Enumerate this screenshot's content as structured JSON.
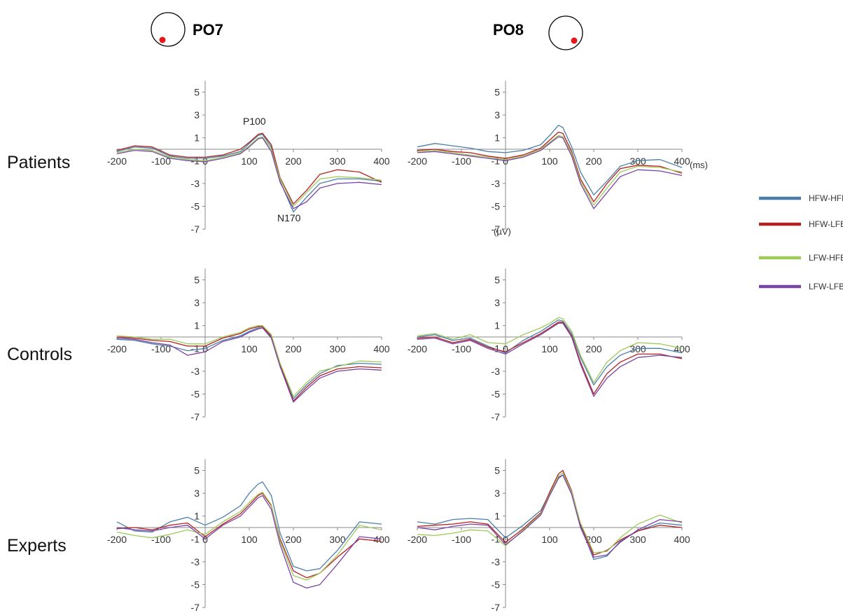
{
  "electrodes": [
    {
      "label": "PO7",
      "dot_color": "#e3191c"
    },
    {
      "label": "PO8",
      "dot_color": "#e3191c"
    }
  ],
  "rows": [
    "Patients",
    "Controls",
    "Experts"
  ],
  "legend": [
    {
      "name": "HFW-HFB",
      "color": "#4a7ea8"
    },
    {
      "name": "HFW-LFB",
      "color": "#b22222"
    },
    {
      "name": "LFW-HFB",
      "color": "#9fca5a"
    },
    {
      "name": "LFW-LFB",
      "color": "#7b43a6"
    }
  ],
  "units": {
    "x": "(ms)",
    "y": "(µV)"
  },
  "annotations": {
    "p100": "P100",
    "n170": "N170"
  },
  "chart_data": [
    {
      "type": "line",
      "row": "Patients",
      "electrode": "PO7",
      "xlim": [
        -200,
        400
      ],
      "ylim": [
        -7,
        6
      ],
      "xticks": [
        -200,
        -100,
        0,
        100,
        200,
        300,
        400
      ],
      "yticks": [
        5,
        3,
        1,
        -1,
        -3,
        -5,
        -7
      ],
      "x": [
        -200,
        -160,
        -120,
        -80,
        -40,
        0,
        40,
        80,
        100,
        120,
        130,
        150,
        170,
        200,
        230,
        260,
        300,
        350,
        400
      ],
      "series": [
        {
          "name": "HFW-HFB",
          "values": [
            -0.2,
            0.2,
            0.1,
            -0.6,
            -0.8,
            -0.8,
            -0.6,
            -0.2,
            0.5,
            1.2,
            1.3,
            0.2,
            -2.8,
            -5.5,
            -4.2,
            -3.0,
            -2.6,
            -2.6,
            -2.8
          ]
        },
        {
          "name": "HFW-LFB",
          "values": [
            -0.1,
            0.3,
            0.2,
            -0.5,
            -0.7,
            -0.7,
            -0.5,
            0.0,
            0.6,
            1.3,
            1.4,
            0.4,
            -2.5,
            -4.8,
            -3.6,
            -2.2,
            -1.8,
            -2.0,
            -2.9
          ]
        },
        {
          "name": "LFW-HFB",
          "values": [
            -0.3,
            0.0,
            -0.1,
            -0.7,
            -0.9,
            -1.0,
            -0.7,
            -0.3,
            0.3,
            1.0,
            1.1,
            0.0,
            -2.6,
            -5.0,
            -3.8,
            -2.6,
            -2.4,
            -2.5,
            -2.7
          ]
        },
        {
          "name": "LFW-LFB",
          "values": [
            -0.4,
            -0.1,
            -0.2,
            -0.8,
            -1.0,
            -1.1,
            -0.8,
            -0.4,
            0.2,
            0.9,
            1.0,
            -0.2,
            -2.9,
            -5.2,
            -4.6,
            -3.4,
            -3.0,
            -2.9,
            -3.1
          ]
        }
      ]
    },
    {
      "type": "line",
      "row": "Patients",
      "electrode": "PO8",
      "xlim": [
        -200,
        400
      ],
      "ylim": [
        -7,
        6
      ],
      "xticks": [
        -200,
        -100,
        0,
        100,
        200,
        300,
        400
      ],
      "yticks": [
        5,
        3,
        1,
        -1,
        -3,
        -5,
        -7
      ],
      "x": [
        -200,
        -160,
        -120,
        -80,
        -40,
        0,
        40,
        80,
        100,
        120,
        130,
        150,
        170,
        200,
        230,
        260,
        300,
        350,
        400
      ],
      "series": [
        {
          "name": "HFW-HFB",
          "values": [
            0.2,
            0.5,
            0.3,
            0.1,
            -0.2,
            -0.3,
            -0.1,
            0.4,
            1.2,
            2.1,
            1.9,
            0.2,
            -2.0,
            -4.0,
            -2.8,
            -1.5,
            -1.0,
            -0.9,
            -1.6
          ]
        },
        {
          "name": "HFW-LFB",
          "values": [
            -0.1,
            0.0,
            -0.2,
            -0.3,
            -0.6,
            -0.8,
            -0.5,
            0.1,
            0.8,
            1.5,
            1.4,
            -0.2,
            -2.6,
            -4.6,
            -3.0,
            -1.7,
            -1.4,
            -1.5,
            -2.1
          ]
        },
        {
          "name": "LFW-HFB",
          "values": [
            -0.2,
            -0.1,
            -0.3,
            -0.5,
            -0.7,
            -0.9,
            -0.6,
            0.0,
            0.6,
            1.2,
            1.1,
            -0.4,
            -2.8,
            -4.9,
            -3.4,
            -2.0,
            -1.5,
            -1.6,
            -2.0
          ]
        },
        {
          "name": "LFW-LFB",
          "values": [
            -0.3,
            -0.2,
            -0.4,
            -0.6,
            -0.8,
            -1.0,
            -0.7,
            -0.1,
            0.5,
            1.1,
            1.0,
            -0.6,
            -3.0,
            -5.2,
            -3.8,
            -2.4,
            -1.8,
            -1.9,
            -2.3
          ]
        }
      ]
    },
    {
      "type": "line",
      "row": "Controls",
      "electrode": "PO7",
      "xlim": [
        -200,
        400
      ],
      "ylim": [
        -7,
        6
      ],
      "xticks": [
        -200,
        -100,
        0,
        100,
        200,
        300,
        400
      ],
      "yticks": [
        5,
        3,
        1,
        -1,
        -3,
        -5,
        -7
      ],
      "x": [
        -200,
        -160,
        -120,
        -80,
        -40,
        0,
        40,
        80,
        100,
        120,
        130,
        150,
        170,
        200,
        230,
        260,
        300,
        350,
        400
      ],
      "series": [
        {
          "name": "HFW-HFB",
          "values": [
            -0.2,
            -0.3,
            -0.6,
            -0.8,
            -1.2,
            -1.0,
            -0.3,
            0.1,
            0.5,
            0.8,
            0.8,
            0.0,
            -2.5,
            -5.4,
            -4.2,
            -3.2,
            -2.5,
            -2.3,
            -2.4
          ]
        },
        {
          "name": "HFW-LFB",
          "values": [
            0.0,
            -0.1,
            -0.3,
            -0.4,
            -0.8,
            -0.8,
            -0.1,
            0.3,
            0.7,
            0.9,
            0.9,
            0.1,
            -2.4,
            -5.6,
            -4.4,
            -3.4,
            -2.8,
            -2.6,
            -2.7
          ]
        },
        {
          "name": "LFW-HFB",
          "values": [
            0.1,
            0.0,
            -0.2,
            -0.2,
            -0.6,
            -0.6,
            0.0,
            0.4,
            0.8,
            1.0,
            1.0,
            0.2,
            -2.3,
            -5.2,
            -4.0,
            -3.0,
            -2.6,
            -2.1,
            -2.2
          ]
        },
        {
          "name": "LFW-LFB",
          "values": [
            -0.1,
            -0.2,
            -0.5,
            -0.7,
            -1.6,
            -1.3,
            -0.4,
            0.0,
            0.4,
            0.7,
            0.8,
            -0.1,
            -2.6,
            -5.7,
            -4.6,
            -3.6,
            -3.0,
            -2.8,
            -2.9
          ]
        }
      ]
    },
    {
      "type": "line",
      "row": "Controls",
      "electrode": "PO8",
      "xlim": [
        -200,
        400
      ],
      "ylim": [
        -7,
        6
      ],
      "xticks": [
        -200,
        -100,
        0,
        100,
        200,
        300,
        400
      ],
      "yticks": [
        5,
        3,
        1,
        -1,
        -3,
        -5,
        -7
      ],
      "x": [
        -200,
        -160,
        -120,
        -80,
        -40,
        0,
        40,
        80,
        100,
        120,
        130,
        150,
        170,
        200,
        230,
        260,
        300,
        350,
        400
      ],
      "series": [
        {
          "name": "HFW-HFB",
          "values": [
            0.0,
            0.2,
            -0.3,
            -0.1,
            -0.8,
            -1.4,
            -0.3,
            0.5,
            1.0,
            1.5,
            1.4,
            0.3,
            -1.8,
            -4.2,
            -2.6,
            -1.6,
            -1.0,
            -1.0,
            -1.4
          ]
        },
        {
          "name": "HFW-LFB",
          "values": [
            -0.1,
            0.0,
            -0.5,
            -0.2,
            -0.9,
            -1.3,
            -0.5,
            0.3,
            0.8,
            1.3,
            1.3,
            0.1,
            -2.2,
            -5.0,
            -3.2,
            -2.2,
            -1.5,
            -1.5,
            -1.9
          ]
        },
        {
          "name": "LFW-HFB",
          "values": [
            0.1,
            0.3,
            -0.2,
            0.2,
            -0.5,
            -0.6,
            0.2,
            0.8,
            1.2,
            1.7,
            1.6,
            0.5,
            -1.6,
            -4.0,
            -2.2,
            -1.2,
            -0.5,
            -0.6,
            -1.0
          ]
        },
        {
          "name": "LFW-LFB",
          "values": [
            -0.2,
            -0.1,
            -0.6,
            -0.3,
            -1.0,
            -1.5,
            -0.6,
            0.2,
            0.7,
            1.2,
            1.2,
            0.0,
            -2.4,
            -5.2,
            -3.6,
            -2.6,
            -1.8,
            -1.6,
            -1.8
          ]
        }
      ]
    },
    {
      "type": "line",
      "row": "Experts",
      "electrode": "PO7",
      "xlim": [
        -200,
        400
      ],
      "ylim": [
        -7,
        6
      ],
      "xticks": [
        -200,
        -100,
        0,
        100,
        200,
        300,
        400
      ],
      "yticks": [
        5,
        3,
        1,
        -1,
        -3,
        -5,
        -7
      ],
      "x": [
        -200,
        -160,
        -120,
        -80,
        -40,
        0,
        40,
        80,
        100,
        120,
        130,
        150,
        170,
        200,
        230,
        260,
        300,
        350,
        400
      ],
      "series": [
        {
          "name": "HFW-HFB",
          "values": [
            0.5,
            -0.3,
            -0.4,
            0.5,
            0.9,
            0.2,
            0.9,
            1.9,
            3.0,
            3.8,
            4.0,
            2.8,
            -0.5,
            -3.4,
            -3.8,
            -3.6,
            -2.0,
            0.5,
            0.3
          ]
        },
        {
          "name": "HFW-LFB",
          "values": [
            -0.1,
            0.0,
            -0.2,
            0.2,
            0.4,
            -0.8,
            0.3,
            1.2,
            2.0,
            2.8,
            3.0,
            1.9,
            -1.0,
            -3.8,
            -4.4,
            -4.0,
            -2.6,
            -1.0,
            -1.2
          ]
        },
        {
          "name": "LFW-HFB",
          "values": [
            -0.4,
            -0.7,
            -0.9,
            -0.6,
            -0.2,
            -0.6,
            0.5,
            1.4,
            2.2,
            2.9,
            3.1,
            2.0,
            -1.2,
            -4.2,
            -4.6,
            -4.0,
            -2.4,
            0.2,
            -0.2
          ]
        },
        {
          "name": "LFW-LFB",
          "values": [
            0.0,
            -0.2,
            -0.3,
            0.0,
            0.2,
            -1.0,
            0.2,
            1.0,
            1.8,
            2.6,
            2.8,
            1.6,
            -1.5,
            -4.8,
            -5.3,
            -5.0,
            -3.2,
            -0.8,
            -1.0
          ]
        }
      ]
    },
    {
      "type": "line",
      "row": "Experts",
      "electrode": "PO8",
      "xlim": [
        -200,
        400
      ],
      "ylim": [
        -7,
        6
      ],
      "xticks": [
        -200,
        -100,
        0,
        100,
        200,
        300,
        400
      ],
      "yticks": [
        5,
        3,
        1,
        -1,
        -3,
        -5,
        -7
      ],
      "x": [
        -200,
        -160,
        -120,
        -80,
        -40,
        0,
        40,
        80,
        100,
        120,
        130,
        150,
        170,
        200,
        230,
        260,
        300,
        350,
        400
      ],
      "series": [
        {
          "name": "HFW-HFB",
          "values": [
            0.5,
            0.3,
            0.7,
            0.8,
            0.7,
            -0.9,
            0.2,
            1.5,
            3.0,
            4.4,
            4.6,
            3.0,
            0.2,
            -2.8,
            -2.5,
            -1.2,
            -0.3,
            0.4,
            0.2
          ]
        },
        {
          "name": "HFW-LFB",
          "values": [
            0.1,
            0.2,
            0.3,
            0.5,
            0.3,
            -1.3,
            -0.1,
            1.3,
            3.1,
            4.7,
            5.0,
            3.2,
            0.3,
            -2.4,
            -2.0,
            -1.1,
            -0.3,
            0.2,
            0.0
          ]
        },
        {
          "name": "LFW-HFB",
          "values": [
            -0.6,
            -0.7,
            -0.5,
            -0.2,
            -0.3,
            -1.6,
            -0.2,
            1.2,
            2.9,
            4.5,
            4.8,
            3.1,
            0.4,
            -2.2,
            -2.1,
            -0.9,
            0.3,
            1.1,
            0.4
          ]
        },
        {
          "name": "LFW-LFB",
          "values": [
            0.0,
            -0.2,
            0.1,
            0.3,
            0.2,
            -1.5,
            -0.3,
            1.1,
            2.8,
            4.3,
            4.6,
            2.9,
            0.0,
            -2.6,
            -2.4,
            -1.3,
            -0.2,
            0.7,
            0.5
          ]
        }
      ]
    }
  ]
}
